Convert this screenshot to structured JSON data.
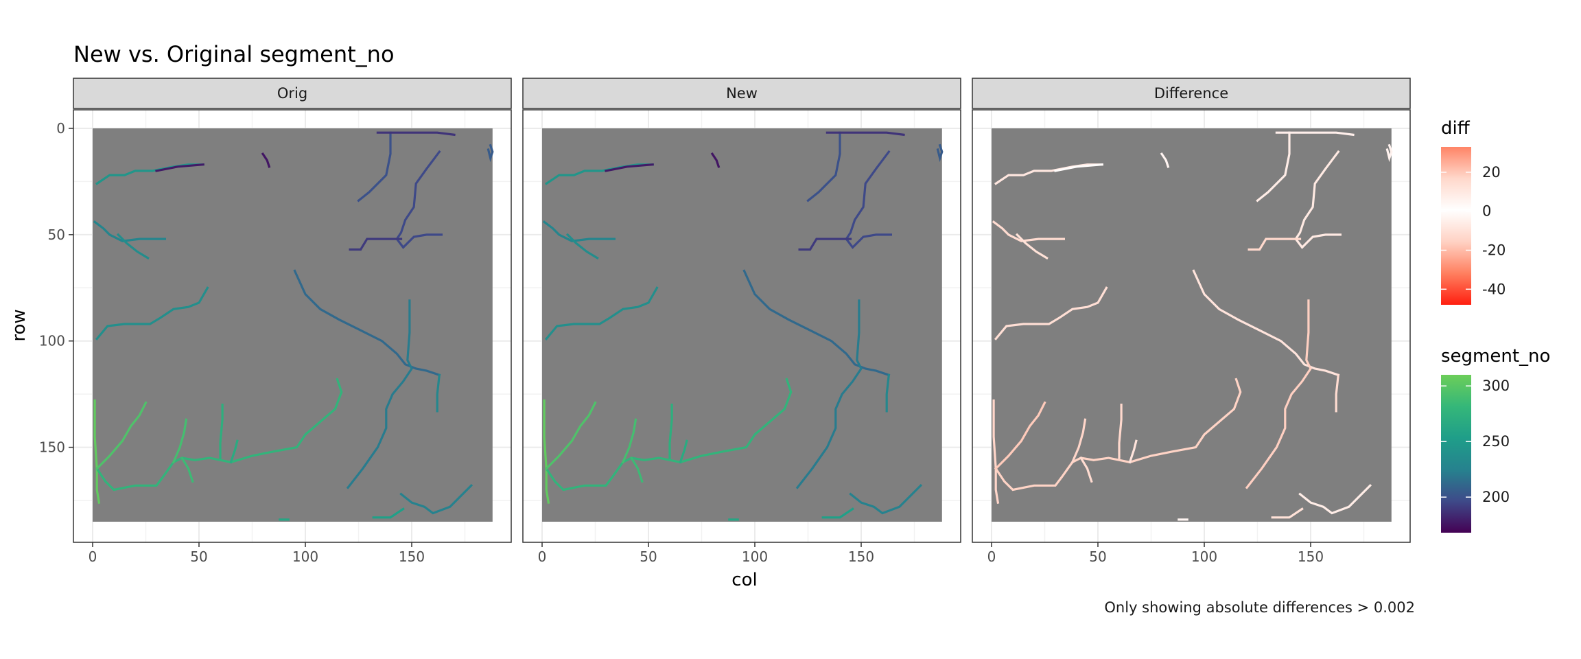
{
  "chart_data": {
    "type": "heatmap",
    "title": "New vs. Original segment_no",
    "xlabel": "col",
    "ylabel": "row",
    "caption": "Only showing absolute differences > 0.002",
    "xlim": [
      0,
      188
    ],
    "ylim": [
      185,
      0
    ],
    "x_ticks": [
      0,
      50,
      100,
      150
    ],
    "y_ticks": [
      0,
      50,
      100,
      150
    ],
    "grid": true,
    "background_value_color": "#7f7f7f",
    "facets": [
      {
        "name": "Orig",
        "fill_scale": "segment_no",
        "shift": 0
      },
      {
        "name": "New",
        "fill_scale": "segment_no",
        "shift": 0
      },
      {
        "name": "Difference",
        "fill_scale": "diff"
      }
    ],
    "legends": [
      {
        "title": "diff",
        "type": "gradient",
        "range": [
          -48,
          33
        ],
        "ticks": [
          20,
          0,
          -20,
          -40
        ],
        "colors": [
          "#ff1f10",
          "#ff8060",
          "#ffd2c4",
          "#ffffff",
          "#ffd8cb",
          "#ff8466"
        ]
      },
      {
        "title": "segment_no",
        "type": "gradient",
        "range": [
          168,
          310
        ],
        "ticks": [
          300,
          250,
          200
        ],
        "colors": [
          "#440154",
          "#3e4a89",
          "#26828e",
          "#1f9e89",
          "#35b779",
          "#6cce59"
        ]
      }
    ],
    "segments": [
      {
        "id": "top-left-branch",
        "value": 245,
        "diff": -8,
        "points": [
          [
            2,
            26
          ],
          [
            8,
            22
          ],
          [
            15,
            22
          ],
          [
            20,
            20
          ],
          [
            28,
            20
          ],
          [
            38,
            18
          ],
          [
            45,
            17
          ],
          [
            52,
            17
          ]
        ]
      },
      {
        "id": "top-left-branch-end",
        "value": 178,
        "diff": 2,
        "points": [
          [
            30,
            20
          ],
          [
            40,
            18
          ],
          [
            52,
            17
          ]
        ]
      },
      {
        "id": "small-upper-mark",
        "value": 176,
        "diff": 5,
        "points": [
          [
            80,
            12
          ],
          [
            82,
            15
          ],
          [
            83,
            18
          ]
        ]
      },
      {
        "id": "nw-stream",
        "value": 228,
        "diff": -12,
        "points": [
          [
            1,
            44
          ],
          [
            5,
            47
          ],
          [
            8,
            50
          ],
          [
            14,
            53
          ],
          [
            22,
            52
          ],
          [
            34,
            52
          ]
        ]
      },
      {
        "id": "nw-stream-fork",
        "value": 236,
        "diff": -10,
        "points": [
          [
            12,
            50
          ],
          [
            16,
            54
          ],
          [
            21,
            58
          ],
          [
            26,
            61
          ]
        ]
      },
      {
        "id": "left-edge-main",
        "value": 305,
        "diff": -14,
        "points": [
          [
            1,
            128
          ],
          [
            1,
            145
          ],
          [
            2,
            160
          ],
          [
            2,
            170
          ],
          [
            3,
            176
          ]
        ]
      },
      {
        "id": "central-diagonal",
        "value": 212,
        "diff": -9,
        "points": [
          [
            95,
            67
          ],
          [
            100,
            78
          ],
          [
            107,
            85
          ],
          [
            116,
            90
          ],
          [
            126,
            95
          ],
          [
            136,
            100
          ],
          [
            143,
            106
          ],
          [
            147,
            111
          ],
          [
            152,
            113
          ],
          [
            157,
            114
          ],
          [
            163,
            116
          ]
        ]
      },
      {
        "id": "west-tributary",
        "value": 238,
        "diff": -11,
        "points": [
          [
            2,
            99
          ],
          [
            7,
            93
          ],
          [
            15,
            92
          ],
          [
            27,
            92
          ],
          [
            32,
            89
          ],
          [
            38,
            85
          ],
          [
            45,
            84
          ],
          [
            50,
            82
          ],
          [
            54,
            75
          ]
        ]
      },
      {
        "id": "ne-stream-a",
        "value": 200,
        "diff": -6,
        "points": [
          [
            140,
            2
          ],
          [
            140,
            12
          ],
          [
            138,
            22
          ],
          [
            130,
            30
          ],
          [
            125,
            34
          ]
        ]
      },
      {
        "id": "ne-stream-b",
        "value": 196,
        "diff": -7,
        "points": [
          [
            163,
            11
          ],
          [
            157,
            19
          ],
          [
            152,
            26
          ],
          [
            151,
            37
          ],
          [
            147,
            43
          ],
          [
            145,
            49
          ],
          [
            143,
            52
          ],
          [
            146,
            56
          ],
          [
            151,
            51
          ],
          [
            157,
            50
          ],
          [
            164,
            50
          ]
        ]
      },
      {
        "id": "ne-stream-c",
        "value": 190,
        "diff": -13,
        "points": [
          [
            121,
            57
          ],
          [
            126,
            57
          ],
          [
            129,
            52
          ],
          [
            140,
            52
          ],
          [
            145,
            52
          ]
        ]
      },
      {
        "id": "top-edge-stream",
        "value": 188,
        "diff": -5,
        "points": [
          [
            134,
            2
          ],
          [
            150,
            2
          ],
          [
            162,
            2
          ],
          [
            170,
            3
          ]
        ]
      },
      {
        "id": "east-edge-mark",
        "value": 205,
        "diff": -4,
        "points": [
          [
            186,
            10
          ],
          [
            187,
            14
          ],
          [
            188,
            11
          ],
          [
            187,
            8
          ]
        ]
      },
      {
        "id": "east-tributary",
        "value": 222,
        "diff": -16,
        "points": [
          [
            149,
            81
          ],
          [
            149,
            96
          ],
          [
            148,
            109
          ],
          [
            150,
            113
          ],
          [
            146,
            119
          ],
          [
            141,
            125
          ],
          [
            138,
            132
          ],
          [
            138,
            141
          ],
          [
            134,
            150
          ],
          [
            127,
            160
          ],
          [
            120,
            169
          ]
        ]
      },
      {
        "id": "east-spur",
        "value": 230,
        "diff": -12,
        "points": [
          [
            163,
            116
          ],
          [
            162,
            125
          ],
          [
            162,
            133
          ]
        ]
      },
      {
        "id": "south-main",
        "value": 278,
        "diff": -15,
        "points": [
          [
            2,
            160
          ],
          [
            6,
            166
          ],
          [
            10,
            170
          ],
          [
            20,
            168
          ],
          [
            30,
            168
          ],
          [
            33,
            164
          ],
          [
            38,
            157
          ],
          [
            42,
            155
          ],
          [
            48,
            156
          ],
          [
            55,
            155
          ],
          [
            65,
            157
          ],
          [
            75,
            154
          ],
          [
            85,
            152
          ],
          [
            96,
            150
          ],
          [
            100,
            144
          ],
          [
            107,
            138
          ],
          [
            114,
            132
          ],
          [
            117,
            124
          ],
          [
            115,
            118
          ]
        ]
      },
      {
        "id": "south-west-arm",
        "value": 295,
        "diff": -17,
        "points": [
          [
            2,
            160
          ],
          [
            8,
            154
          ],
          [
            14,
            147
          ],
          [
            18,
            140
          ],
          [
            22,
            135
          ],
          [
            25,
            129
          ]
        ]
      },
      {
        "id": "south-fork-a",
        "value": 290,
        "diff": -14,
        "points": [
          [
            38,
            157
          ],
          [
            41,
            150
          ],
          [
            43,
            143
          ],
          [
            44,
            137
          ]
        ]
      },
      {
        "id": "south-fork-b",
        "value": 285,
        "diff": -12,
        "points": [
          [
            42,
            155
          ],
          [
            45,
            160
          ],
          [
            47,
            166
          ]
        ]
      },
      {
        "id": "south-fork-c",
        "value": 272,
        "diff": -13,
        "points": [
          [
            60,
            155
          ],
          [
            60,
            148
          ],
          [
            61,
            137
          ],
          [
            61,
            130
          ]
        ]
      },
      {
        "id": "south-fork-d",
        "value": 268,
        "diff": -9,
        "points": [
          [
            65,
            157
          ],
          [
            67,
            151
          ],
          [
            68,
            147
          ]
        ]
      },
      {
        "id": "bottom-right",
        "value": 225,
        "diff": -6,
        "points": [
          [
            145,
            172
          ],
          [
            150,
            176
          ],
          [
            156,
            178
          ],
          [
            160,
            181
          ],
          [
            168,
            178
          ],
          [
            173,
            173
          ],
          [
            178,
            168
          ]
        ]
      },
      {
        "id": "bottom-left-mark",
        "value": 262,
        "diff": -3,
        "points": [
          [
            88,
            184
          ],
          [
            92,
            184
          ]
        ]
      },
      {
        "id": "bottom-mid",
        "value": 255,
        "diff": -10,
        "points": [
          [
            132,
            183
          ],
          [
            140,
            183
          ],
          [
            146,
            179
          ]
        ]
      }
    ]
  }
}
